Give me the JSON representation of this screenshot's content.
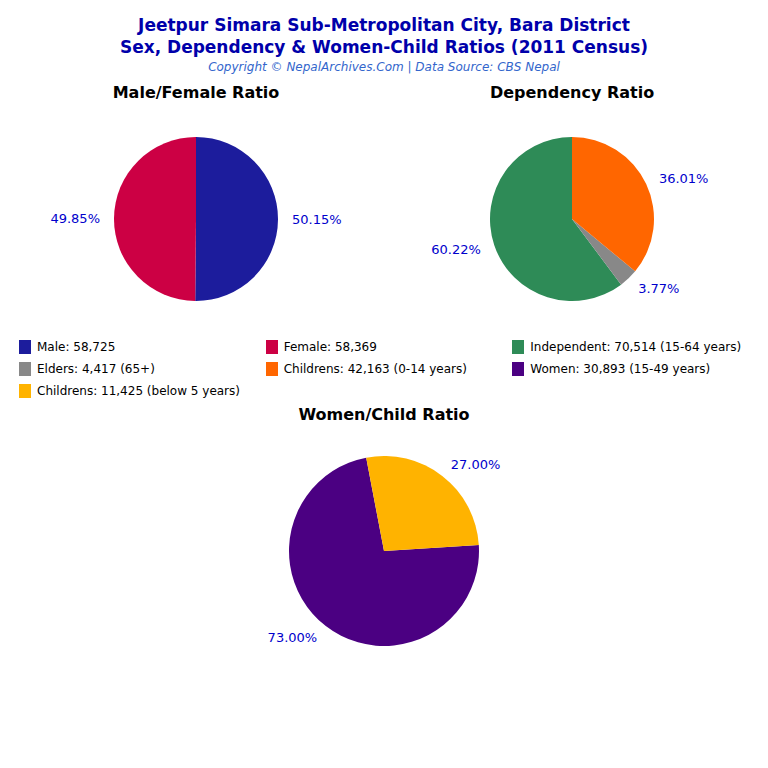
{
  "title": "Jeetpur Simara Sub-Metropolitan City, Bara District",
  "subtitle": "Sex, Dependency & Women-Child Ratios (2011 Census)",
  "annotations": [
    "Copyright © NepalArchives.Com | Data Source: CBS Nepal"
  ],
  "chart_data": [
    {
      "type": "pie",
      "title": "Male/Female Ratio",
      "categories": [
        "Male: 58,725",
        "Female: 58,369"
      ],
      "values": [
        50.15,
        49.85
      ],
      "value_labels": [
        "50.15%",
        "49.85%"
      ],
      "colors": [
        "#1C1C9C",
        "#CC0044"
      ],
      "data_labels": true,
      "legend": "center"
    },
    {
      "type": "pie",
      "title": "Dependency Ratio",
      "categories": [
        "Independent: 70,514 (15-64 years)",
        "Elders: 4,417 (65+)",
        "Childrens: 42,163 (0-14 years)"
      ],
      "values": [
        60.22,
        3.77,
        36.01
      ],
      "value_labels": [
        "60.22%",
        "3.77%",
        "36.01%"
      ],
      "colors": [
        "#2E8B57",
        "#888888",
        "#FF6600"
      ],
      "data_labels": true,
      "legend": "center"
    },
    {
      "type": "pie",
      "title": "Women/Child Ratio",
      "categories": [
        "Women: 30,893 (15-49 years)",
        "Childrens: 11,425 (below 5 years)"
      ],
      "values": [
        73.0,
        27.0
      ],
      "value_labels": [
        "73.00%",
        "27.00%"
      ],
      "colors": [
        "#4B0082",
        "#FFB300"
      ],
      "data_labels": true,
      "legend": "center"
    }
  ]
}
